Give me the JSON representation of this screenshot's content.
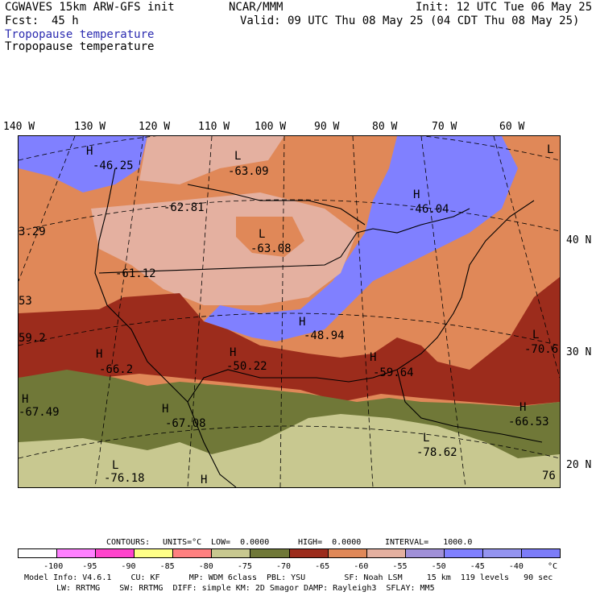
{
  "header": {
    "model": "CGWAVES 15km ARW-GFS init",
    "org": "NCAR/MMM",
    "init": "Init: 12 UTC Tue 06 May 25",
    "fcst_label": "Fcst:",
    "fcst_value": "45 h",
    "valid": "Valid: 09 UTC Thu 08 May 25 (04 CDT Thu 08 May 25)",
    "field_title_1": "Tropopause temperature",
    "field_title_2": "Tropopause temperature"
  },
  "map": {
    "longitudes": [
      "140 W",
      "130 W",
      "120 W",
      "110 W",
      "100 W",
      "90 W",
      "80 W",
      "70 W",
      "60 W"
    ],
    "latitudes": [
      "40 N",
      "30 N",
      "20 N"
    ],
    "labels": [
      {
        "kind": "H",
        "value": "-46.25"
      },
      {
        "kind": "L",
        "value": "-63.09"
      },
      {
        "kind": "H",
        "value": "-46.04"
      },
      {
        "kind": "",
        "value": "-62.81"
      },
      {
        "kind": "L",
        "value": "-63.08"
      },
      {
        "kind": "",
        "value": "-61.12"
      },
      {
        "kind": "",
        "value": "3.29"
      },
      {
        "kind": "",
        "value": "53"
      },
      {
        "kind": "",
        "value": "59.2"
      },
      {
        "kind": "H",
        "value": "-48.94"
      },
      {
        "kind": "H",
        "value": "-66.2"
      },
      {
        "kind": "H",
        "value": "-50.22"
      },
      {
        "kind": "H",
        "value": "-59.64"
      },
      {
        "kind": "L",
        "value": "-70.6"
      },
      {
        "kind": "H",
        "value": "-67.49"
      },
      {
        "kind": "H",
        "value": "-67.08"
      },
      {
        "kind": "H",
        "value": "-66.53"
      },
      {
        "kind": "L",
        "value": "-78.62"
      },
      {
        "kind": "L",
        "value": "-76.18"
      },
      {
        "kind": "H",
        "value": ""
      },
      {
        "kind": "L",
        "value": ""
      },
      {
        "kind": "",
        "value": "76"
      }
    ]
  },
  "contours": {
    "label": "CONTOURS:",
    "units": "UNITS=°C",
    "low": "LOW=  0.0000",
    "high": "HIGH=  0.0000",
    "interval": "INTERVAL=   1000.0"
  },
  "colorbar": {
    "colors": [
      "#ffffff",
      "#ff80ff",
      "#ff44cc",
      "#ffff88",
      "#ff8080",
      "#c8c890",
      "#707838",
      "#9c2c1c",
      "#e08858",
      "#e4b0a0",
      "#a090d8",
      "#8080ff",
      "#9494f0",
      "#7c7cf8"
    ],
    "ticks": [
      "-100",
      "-95",
      "-90",
      "-85",
      "-80",
      "-75",
      "-70",
      "-65",
      "-60",
      "-55",
      "-50",
      "-45",
      "-40",
      "°C"
    ]
  },
  "footer": {
    "line1": "Model Info: V4.6.1    CU: KF      MP: WDM 6class  PBL: YSU        SF: Noah LSM     15 km  119 levels   90 sec",
    "line2": "LW: RRTMG    SW: RRTMG  DIFF: simple KM: 2D Smagor DAMP: Rayleigh3  SFLAY: MM5"
  }
}
